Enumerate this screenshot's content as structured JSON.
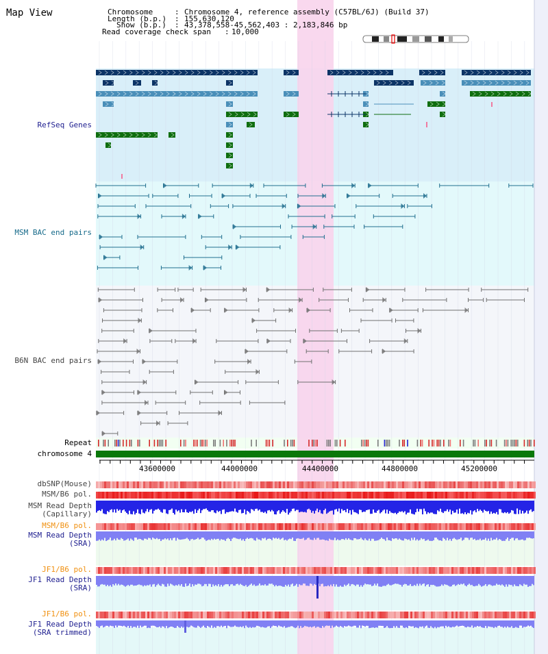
{
  "title": "Map View",
  "info": {
    "chromosome_label": "Chromosome",
    "chromosome_value": "Chromosome 4, reference assembly (C57BL/6J) (Build 37)",
    "length_label": "Length (b.p.)",
    "length_value": "155,630,120",
    "show_label": "Show (b.p.)",
    "show_value": "43,378,558-45,562,403 : 2,183,846 bp",
    "coverage_label": "Read coverage check span",
    "coverage_value": "10,000"
  },
  "tracks": {
    "refseq": "RefSeq Genes",
    "msm_bac": "MSM BAC end pairs",
    "b6n_bac": "B6N BAC end pairs",
    "repeat": "Repeat",
    "chromosome": "chromosome 4",
    "dbsnp": "dbSNP(Mouse)",
    "msm_b6_pol_1": "MSM/B6 pol.",
    "msm_depth_cap_1": "MSM Read Depth",
    "msm_depth_cap_2": "(Capillary)",
    "msm_b6_pol_2": "MSM/B6 pol.",
    "msm_depth_sra_1": "MSM Read Depth",
    "msm_depth_sra_2": "(SRA)",
    "jf1_b6_pol_1": "JF1/B6 pol.",
    "jf1_depth_sra_1": "JF1 Read Depth",
    "jf1_depth_sra_2": "(SRA)",
    "jf1_b6_pol_2": "JF1/B6 pol.",
    "jf1_depth_trim_1": "JF1 Read Depth",
    "jf1_depth_trim_2": "(SRA trimmed)"
  },
  "axis": {
    "ticks": [
      "43600000",
      "44000000",
      "44400000",
      "44800000",
      "45200000"
    ]
  },
  "colors": {
    "refseq_bg": "#d9eff9",
    "msm_bg": "#e3f9fb",
    "b6n_bg": "#f4f6fa",
    "highlight": "#f8d4ec",
    "refseq_dark": "#0c3466",
    "refseq_mid": "#4a8fb9",
    "refseq_green": "#0f6e0f",
    "msm_line": "#206e8f",
    "b6n_line": "#707070",
    "chrom_bar": "#0a780a",
    "depth_blue": "#2424e6",
    "depth_light": "#8080f4",
    "label_navy": "#202090",
    "label_teal": "#166a8a",
    "label_grey": "#444444",
    "label_orange": "#f09010"
  }
}
